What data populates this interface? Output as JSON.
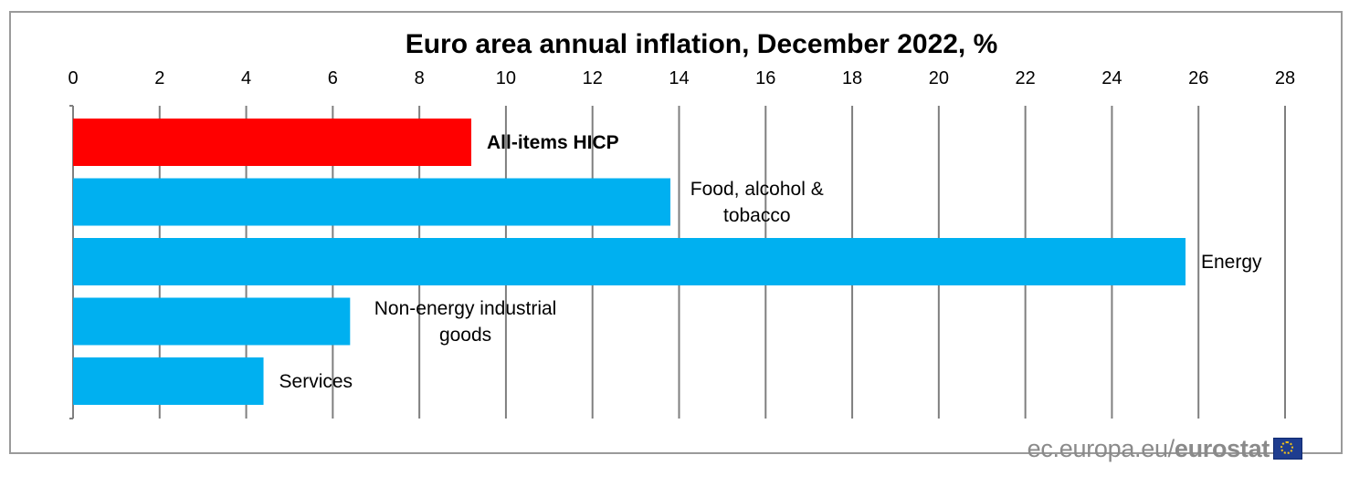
{
  "chart_data": {
    "type": "bar",
    "orientation": "horizontal",
    "title": "Euro area annual inflation, December 2022, %",
    "xlim": [
      0,
      28
    ],
    "xticks": [
      0,
      2,
      4,
      6,
      8,
      10,
      12,
      14,
      16,
      18,
      20,
      22,
      24,
      26,
      28
    ],
    "grid": true,
    "tick_position": "top",
    "categories": [
      [
        "All-items HICP"
      ],
      [
        "Food, alcohol &",
        "tobacco"
      ],
      [
        "Energy"
      ],
      [
        "Non-energy industrial",
        "goods"
      ],
      [
        "Services"
      ]
    ],
    "values": [
      9.2,
      13.8,
      25.7,
      6.4,
      4.4
    ],
    "colors": [
      "#ff0000",
      "#00b0f0",
      "#00b0f0",
      "#00b0f0",
      "#00b0f0"
    ],
    "bold_labels": [
      true,
      false,
      false,
      false,
      false
    ]
  },
  "footer": {
    "source": "ec.europa.eu/",
    "brand": "eurostat",
    "flag_icon": "eu-flag-icon"
  }
}
